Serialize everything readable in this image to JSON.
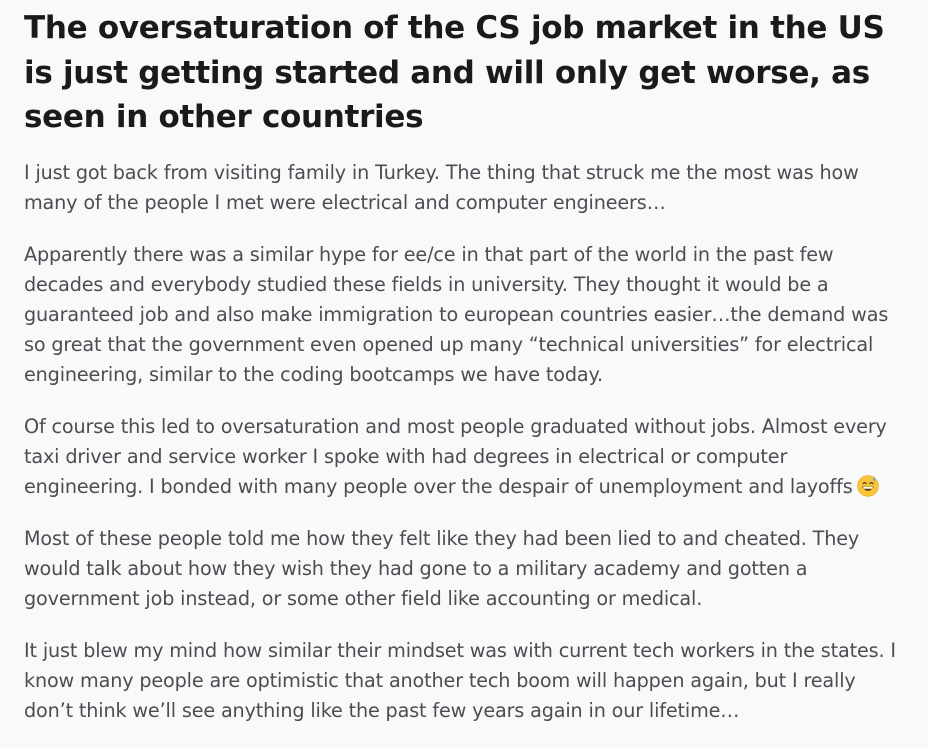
{
  "post": {
    "title": "The oversaturation of the CS job market in the US is just getting started and will only get worse, as seen in other countries",
    "paragraphs": [
      "I just got back from visiting family in Turkey. The thing that struck me the most was how many of the people I met were electrical and computer engineers…",
      "Apparently there was a similar hype for ee/ce in that part of the world in the past few decades and everybody studied these fields in university. They thought it would be a guaranteed job and also make immigration to european countries easier…the demand was so great that the government even opened up many “technical universities” for electrical engineering, similar to the coding bootcamps we have today.",
      "Of course this led to oversaturation and most people graduated without jobs. Almost every taxi driver and service worker I spoke with had degrees in electrical or computer engineering. I bonded with many people over the despair of unemployment and layoffs",
      "Most of these people told me how they felt like they had been lied to and cheated. They would talk about how they wish they had gone to a military academy and gotten a government job instead, or some other field like accounting or medical.",
      "It just blew my mind how similar their mindset was with current tech workers in the states. I know many people are optimistic that another tech boom will happen again, but I really don’t think we’ll see anything like the past few years again in our lifetime…"
    ],
    "emoji_icon": "grinning-face-with-sweat-icon"
  },
  "colors": {
    "background": "#f9f9fa",
    "title": "#1a1a1b",
    "body_text": "#4a4d52"
  }
}
